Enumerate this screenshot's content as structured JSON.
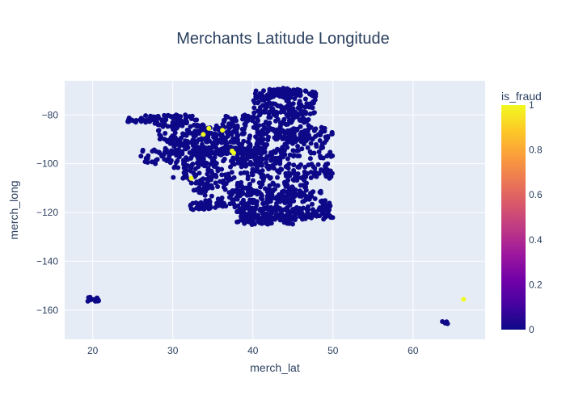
{
  "chart_data": {
    "type": "scatter",
    "title": "Merchants Latitude Longitude",
    "xlabel": "merch_lat",
    "ylabel": "merch_long",
    "xlim": [
      16.5,
      69
    ],
    "ylim": [
      -172,
      -66
    ],
    "x_ticks": [
      20,
      30,
      40,
      50,
      60
    ],
    "y_ticks": [
      -80,
      -100,
      -120,
      -140,
      -160
    ],
    "grid": true,
    "colorbar": {
      "title": "is_fraud",
      "range": [
        0,
        1
      ],
      "ticks": [
        0,
        0.2,
        0.4,
        0.6,
        0.8,
        1
      ],
      "tick_labels": [
        "0",
        "0.2",
        "0.4",
        "0.6",
        "0.8",
        "1"
      ],
      "colorscale": [
        "#0d0887",
        "#46039f",
        "#7201a8",
        "#9c179e",
        "#bd3786",
        "#d8576b",
        "#ed7953",
        "#fb9f3a",
        "#fdca26",
        "#f0f921"
      ]
    },
    "clusters": [
      {
        "lat": [
          26,
          33
        ],
        "long": [
          -84,
          -80
        ],
        "n": 70
      },
      {
        "lat": [
          24,
          28
        ],
        "long": [
          -83,
          -81
        ],
        "n": 15
      },
      {
        "lat": [
          28,
          36
        ],
        "long": [
          -91,
          -84
        ],
        "n": 90
      },
      {
        "lat": [
          29,
          42
        ],
        "long": [
          -96,
          -90
        ],
        "n": 160
      },
      {
        "lat": [
          33,
          44
        ],
        "long": [
          -100,
          -93
        ],
        "n": 160
      },
      {
        "lat": [
          26,
          34
        ],
        "long": [
          -100,
          -94
        ],
        "n": 60
      },
      {
        "lat": [
          36,
          47
        ],
        "long": [
          -90,
          -80
        ],
        "n": 200
      },
      {
        "lat": [
          40,
          48
        ],
        "long": [
          -80,
          -70
        ],
        "n": 160
      },
      {
        "lat": [
          42,
          46
        ],
        "long": [
          -73,
          -69
        ],
        "n": 50
      },
      {
        "lat": [
          44,
          50
        ],
        "long": [
          -98,
          -85
        ],
        "n": 100
      },
      {
        "lat": [
          30,
          50
        ],
        "long": [
          -106,
          -100
        ],
        "n": 160
      },
      {
        "lat": [
          33,
          47
        ],
        "long": [
          -114,
          -106
        ],
        "n": 120
      },
      {
        "lat": [
          37,
          49
        ],
        "long": [
          -116,
          -111
        ],
        "n": 60
      },
      {
        "lat": [
          33,
          50
        ],
        "long": [
          -118,
          -114
        ],
        "n": 80
      },
      {
        "lat": [
          32,
          35
        ],
        "long": [
          -112,
          -106
        ],
        "n": 25
      },
      {
        "lat": [
          38,
          50
        ],
        "long": [
          -123,
          -118
        ],
        "n": 170
      },
      {
        "lat": [
          38,
          45
        ],
        "long": [
          -125,
          -121
        ],
        "n": 60
      },
      {
        "lat": [
          32,
          36
        ],
        "long": [
          -119,
          -116
        ],
        "n": 25
      },
      {
        "lat": [
          19.3,
          20.8
        ],
        "long": [
          -156.5,
          -154.5
        ],
        "n": 14
      },
      {
        "lat": [
          63.5,
          64.8
        ],
        "long": [
          -165.6,
          -164.6
        ],
        "n": 4
      }
    ],
    "fraud_points": [
      {
        "lat": 34.5,
        "long": -85.5,
        "is_fraud": 1
      },
      {
        "lat": 36.2,
        "long": -86.3,
        "is_fraud": 1
      },
      {
        "lat": 33.8,
        "long": -88.0,
        "is_fraud": 1
      },
      {
        "lat": 37.4,
        "long": -94.8,
        "is_fraud": 1
      },
      {
        "lat": 37.6,
        "long": -95.6,
        "is_fraud": 1
      },
      {
        "lat": 32.3,
        "long": -106.0,
        "is_fraud": 1
      },
      {
        "lat": 66.3,
        "long": -155.6,
        "is_fraud": 1
      }
    ]
  }
}
